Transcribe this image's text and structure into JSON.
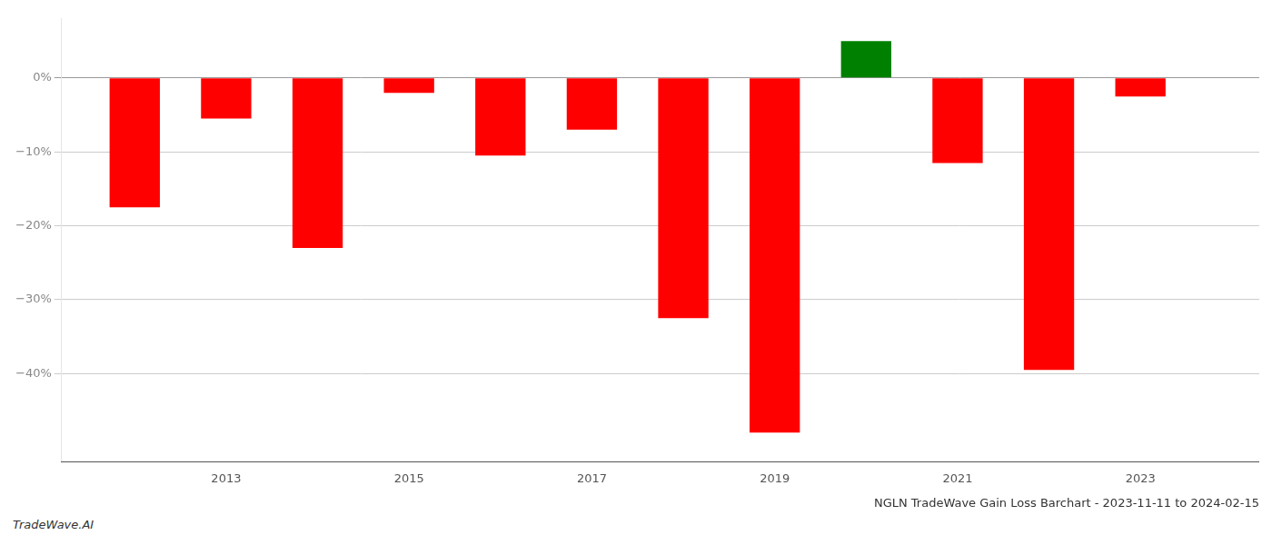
{
  "chart_data": {
    "type": "bar",
    "title": "NGLN TradeWave Gain Loss Barchart - 2023-11-11 to 2024-02-15",
    "annotations": [
      "TradeWave.AI"
    ],
    "x": [
      2012,
      2013,
      2014,
      2015,
      2016,
      2017,
      2018,
      2019,
      2020,
      2021,
      2022,
      2023
    ],
    "values": [
      -17.5,
      -5.5,
      -23.0,
      -2.0,
      -10.5,
      -7.0,
      -32.5,
      -48.0,
      5.0,
      -11.5,
      -39.5,
      -2.5
    ],
    "colors": [
      "#ff0000",
      "#ff0000",
      "#ff0000",
      "#ff0000",
      "#ff0000",
      "#ff0000",
      "#ff0000",
      "#ff0000",
      "#008000",
      "#ff0000",
      "#ff0000",
      "#ff0000"
    ],
    "xlim": [
      2011.2,
      2024.3
    ],
    "xticks": [
      2013,
      2015,
      2017,
      2019,
      2021,
      2023
    ],
    "ylim": [
      -52,
      8
    ],
    "yticks": [
      {
        "value": 0,
        "label": "0%"
      },
      {
        "value": -10,
        "label": "−10%"
      },
      {
        "value": -20,
        "label": "−20%"
      },
      {
        "value": -30,
        "label": "−30%"
      },
      {
        "value": -40,
        "label": "−40%"
      }
    ],
    "grid": "y"
  }
}
